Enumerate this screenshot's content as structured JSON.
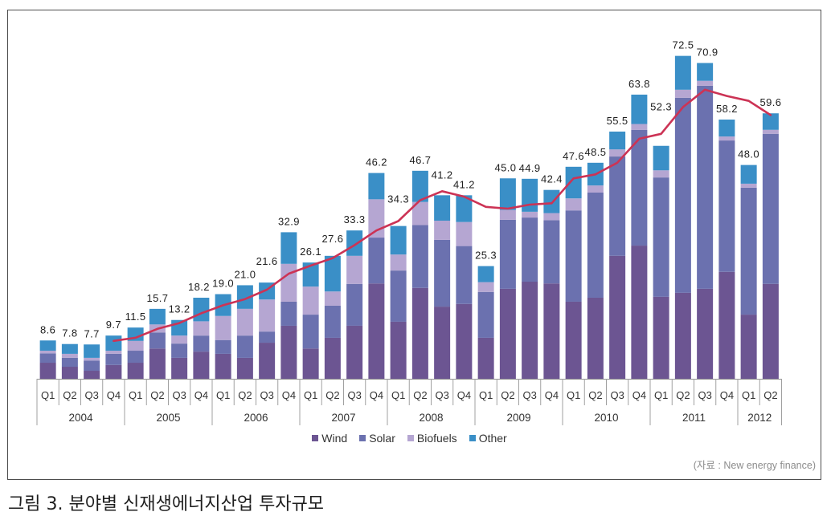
{
  "chart_data": {
    "type": "bar",
    "stacked": true,
    "categories": [
      "Q1",
      "Q2",
      "Q3",
      "Q4",
      "Q1",
      "Q2",
      "Q3",
      "Q4",
      "Q1",
      "Q2",
      "Q3",
      "Q4",
      "Q1",
      "Q2",
      "Q3",
      "Q4",
      "Q1",
      "Q2",
      "Q3",
      "Q4",
      "Q1",
      "Q2",
      "Q3",
      "Q4",
      "Q1",
      "Q2",
      "Q3",
      "Q4",
      "Q1",
      "Q2",
      "Q3",
      "Q4",
      "Q1",
      "Q2"
    ],
    "category_groups": [
      {
        "label": "2004",
        "span": 4
      },
      {
        "label": "2005",
        "span": 4
      },
      {
        "label": "2006",
        "span": 4
      },
      {
        "label": "2007",
        "span": 4
      },
      {
        "label": "2008",
        "span": 4
      },
      {
        "label": "2009",
        "span": 4
      },
      {
        "label": "2010",
        "span": 4
      },
      {
        "label": "2011",
        "span": 4
      },
      {
        "label": "2012",
        "span": 2
      }
    ],
    "series": [
      {
        "name": "Wind",
        "color": "#6c5592",
        "values": [
          3.6,
          2.7,
          1.8,
          3.1,
          3.6,
          6.8,
          4.7,
          6.1,
          5.6,
          4.7,
          8.1,
          11.9,
          6.8,
          9.2,
          11.9,
          21.4,
          12.8,
          20.4,
          16.2,
          16.8,
          9.2,
          20.2,
          21.8,
          21.4,
          17.3,
          18.2,
          27.6,
          29.9,
          18.4,
          19.3,
          20.2,
          24.0,
          14.4,
          21.3
        ]
      },
      {
        "name": "Solar",
        "color": "#6b71af",
        "values": [
          2.1,
          2.0,
          2.3,
          2.5,
          2.7,
          3.6,
          3.2,
          3.6,
          3.1,
          5.0,
          2.5,
          5.4,
          7.6,
          7.2,
          9.4,
          10.3,
          11.5,
          14.1,
          15.0,
          13.0,
          10.3,
          15.5,
          14.4,
          14.2,
          20.5,
          23.6,
          22.3,
          26.0,
          26.8,
          43.8,
          45.6,
          29.5,
          28.5,
          33.7
        ]
      },
      {
        "name": "Biofuels",
        "color": "#b5a6d2",
        "values": [
          0.6,
          0.9,
          0.6,
          0.7,
          2.2,
          1.8,
          1.8,
          3.2,
          5.4,
          6.0,
          7.2,
          8.5,
          6.3,
          3.2,
          6.3,
          8.6,
          3.6,
          5.2,
          4.3,
          5.4,
          2.2,
          2.2,
          1.3,
          1.6,
          2.7,
          1.6,
          1.6,
          1.3,
          1.6,
          1.8,
          1.1,
          0.9,
          0.9,
          0.9
        ]
      },
      {
        "name": "Other",
        "color": "#3a8fc7",
        "values": [
          2.3,
          2.2,
          3.0,
          3.4,
          3.0,
          3.5,
          3.5,
          5.3,
          4.9,
          5.3,
          3.8,
          7.1,
          5.4,
          8.0,
          5.7,
          5.9,
          6.4,
          7.0,
          5.7,
          6.0,
          3.6,
          7.1,
          7.4,
          5.2,
          7.1,
          5.1,
          4.0,
          6.6,
          5.5,
          7.6,
          4.0,
          3.8,
          4.2,
          3.7
        ]
      }
    ],
    "totals": [
      "8.6",
      "7.8",
      "7.7",
      "9.7",
      "11.5",
      "15.7",
      "13.2",
      "18.2",
      "19.0",
      "21.0",
      "21.6",
      "32.9",
      "26.1",
      "27.6",
      "33.3",
      "46.2",
      "34.3",
      "46.7",
      "41.2",
      "41.2",
      "25.3",
      "45.0",
      "44.9",
      "42.4",
      "47.6",
      "48.5",
      "55.5",
      "63.8",
      "52.3",
      "72.5",
      "70.9",
      "58.2",
      "48.0",
      "59.6"
    ],
    "line_series": {
      "color": "#cc3355",
      "values": [
        null,
        null,
        null,
        8.5,
        9.2,
        11.2,
        12.5,
        14.7,
        16.5,
        17.9,
        20.0,
        23.6,
        25.4,
        27.1,
        30.0,
        33.3,
        35.4,
        40.1,
        42.1,
        40.9,
        38.6,
        38.2,
        39.1,
        39.4,
        45.0,
        45.9,
        48.5,
        53.9,
        55.0,
        61.0,
        64.9,
        63.5,
        62.4,
        59.2
      ]
    },
    "legend_position": "bottom",
    "grid": false
  },
  "source_note": "(자료 : New energy finance)",
  "caption": "그림 3. 분야별 신재생에너지산업 투자규모"
}
